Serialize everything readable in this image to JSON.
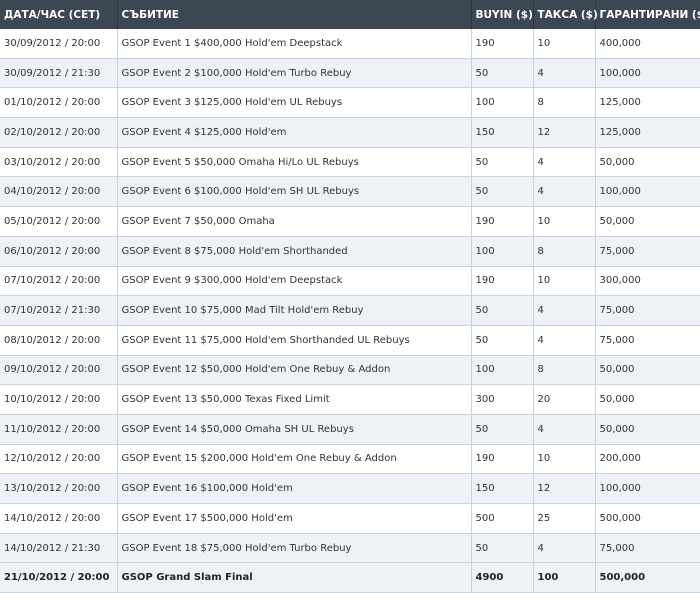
{
  "headers": {
    "date": "ДАТА/ЧАС (CET)",
    "event": "СЪБИТИЕ",
    "buyin": "BUYIN ($)",
    "fee": "ТАКСА ($)",
    "guaranteed": "ГАРАНТИРАНИ ($)"
  },
  "rows": [
    {
      "date": "30/09/2012 / 20:00",
      "event": "GSOP Event 1 $400,000 Hold'em Deepstack",
      "buyin": "190",
      "fee": "10",
      "guaranteed": "400,000"
    },
    {
      "date": "30/09/2012 / 21:30",
      "event": "GSOP Event 2 $100,000 Hold'em Turbo Rebuy",
      "buyin": "50",
      "fee": "4",
      "guaranteed": "100,000"
    },
    {
      "date": "01/10/2012 / 20:00",
      "event": "GSOP Event 3 $125,000 Hold'em UL Rebuys",
      "buyin": "100",
      "fee": "8",
      "guaranteed": "125,000"
    },
    {
      "date": "02/10/2012 / 20:00",
      "event": "GSOP Event 4 $125,000 Hold'em",
      "buyin": "150",
      "fee": "12",
      "guaranteed": "125,000"
    },
    {
      "date": "03/10/2012 / 20:00",
      "event": "GSOP Event 5 $50,000 Omaha Hi/Lo UL Rebuys",
      "buyin": "50",
      "fee": "4",
      "guaranteed": "50,000"
    },
    {
      "date": "04/10/2012 / 20:00",
      "event": "GSOP Event 6 $100,000 Hold'em SH UL Rebuys",
      "buyin": "50",
      "fee": "4",
      "guaranteed": "100,000"
    },
    {
      "date": "05/10/2012 / 20:00",
      "event": "GSOP Event 7 $50,000 Omaha",
      "buyin": "190",
      "fee": "10",
      "guaranteed": "50,000"
    },
    {
      "date": "06/10/2012 / 20:00",
      "event": "GSOP Event 8 $75,000 Hold'em Shorthanded",
      "buyin": "100",
      "fee": "8",
      "guaranteed": "75,000"
    },
    {
      "date": "07/10/2012 / 20:00",
      "event": "GSOP Event 9 $300,000 Hold'em Deepstack",
      "buyin": "190",
      "fee": "10",
      "guaranteed": "300,000"
    },
    {
      "date": "07/10/2012 / 21:30",
      "event": "GSOP Event 10 $75,000 Mad Tilt Hold'em Rebuy",
      "buyin": "50",
      "fee": "4",
      "guaranteed": "75,000"
    },
    {
      "date": "08/10/2012 / 20:00",
      "event": "GSOP Event 11 $75,000 Hold'em Shorthanded UL Rebuys",
      "buyin": "50",
      "fee": "4",
      "guaranteed": "75,000"
    },
    {
      "date": "09/10/2012 / 20:00",
      "event": "GSOP Event 12 $50,000 Hold'em One Rebuy & Addon",
      "buyin": "100",
      "fee": "8",
      "guaranteed": "50,000"
    },
    {
      "date": "10/10/2012 / 20:00",
      "event": "GSOP Event 13 $50,000 Texas Fixed Limit",
      "buyin": "300",
      "fee": "20",
      "guaranteed": "50,000"
    },
    {
      "date": "11/10/2012 / 20:00",
      "event": "GSOP Event 14 $50,000 Omaha SH UL Rebuys",
      "buyin": "50",
      "fee": "4",
      "guaranteed": "50,000"
    },
    {
      "date": "12/10/2012 / 20:00",
      "event": "GSOP Event 15 $200,000 Hold'em One Rebuy & Addon",
      "buyin": "190",
      "fee": "10",
      "guaranteed": "200,000"
    },
    {
      "date": "13/10/2012 / 20:00",
      "event": "GSOP Event 16 $100,000 Hold'em",
      "buyin": "150",
      "fee": "12",
      "guaranteed": "100,000"
    },
    {
      "date": "14/10/2012 / 20:00",
      "event": "GSOP Event 17 $500,000 Hold'em",
      "buyin": "500",
      "fee": "25",
      "guaranteed": "500,000"
    },
    {
      "date": "14/10/2012 / 21:30",
      "event": "GSOP Event 18 $75,000 Hold'em Turbo Rebuy",
      "buyin": "50",
      "fee": "4",
      "guaranteed": "75,000"
    },
    {
      "date": "21/10/2012 / 20:00",
      "event": "GSOP Grand Slam Final",
      "buyin": "4900",
      "fee": "100",
      "guaranteed": "500,000",
      "final": true
    }
  ],
  "colors": {
    "header_bg": "#3b4753",
    "header_text": "#ffffff",
    "row_alt_bg": "#eef1f5",
    "grid_line": "#c8d3dd"
  }
}
